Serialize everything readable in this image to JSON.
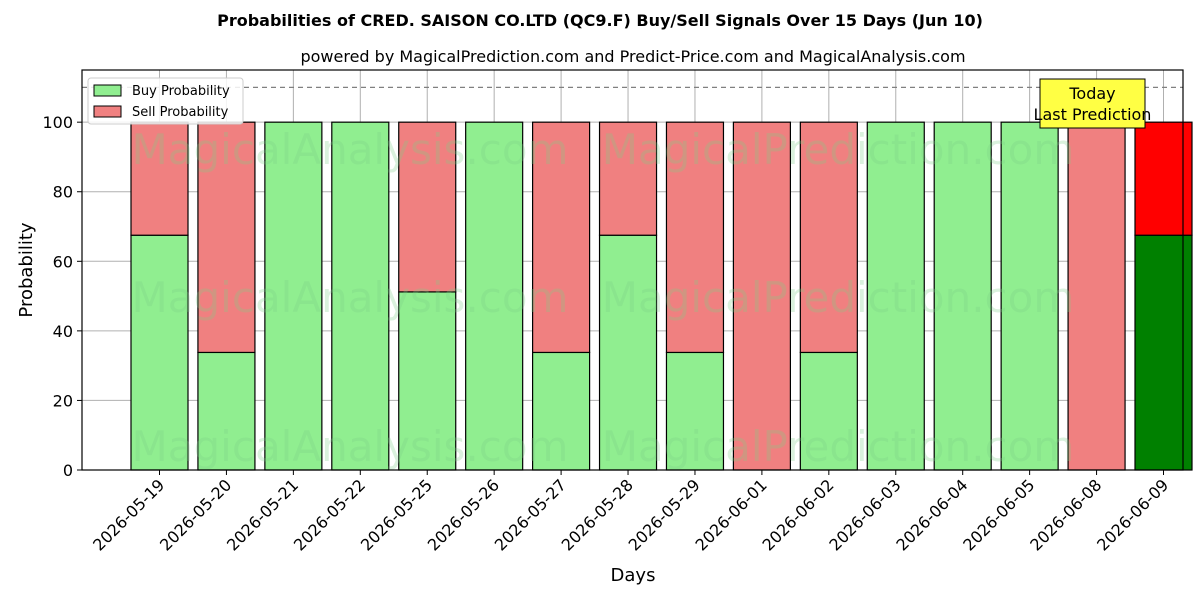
{
  "chart_data": {
    "type": "bar",
    "stacked": true,
    "title": "Probabilities of CRED. SAISON CO.LTD (QC9.F) Buy/Sell Signals Over 15 Days (Jun 10)",
    "subtitle": "powered by MagicalPrediction.com and Predict-Price.com and MagicalAnalysis.com",
    "xlabel": "Days",
    "ylabel": "Probability",
    "ylim": [
      0,
      115
    ],
    "yticks": [
      0,
      20,
      40,
      60,
      80,
      100
    ],
    "grid": true,
    "legend_position": "top-left",
    "reference_line": 110,
    "categories": [
      "2026-05-19",
      "2026-05-20",
      "2026-05-21",
      "2026-05-22",
      "2026-05-25",
      "2026-05-26",
      "2026-05-27",
      "2026-05-28",
      "2026-05-29",
      "2026-06-01",
      "2026-06-02",
      "2026-06-03",
      "2026-06-04",
      "2026-06-05",
      "2026-06-08",
      "2026-06-09"
    ],
    "series": [
      {
        "name": "Buy Probability",
        "color": "#90ee90",
        "highlight_color": "#008000",
        "values": [
          67.5,
          33.8,
          100,
          100,
          51.2,
          100,
          33.8,
          67.5,
          33.8,
          0,
          33.8,
          100,
          100,
          100,
          0,
          67.5
        ]
      },
      {
        "name": "Sell Probability",
        "color": "#f08080",
        "highlight_color": "#ff0000",
        "values": [
          32.5,
          66.2,
          0,
          0,
          48.8,
          0,
          66.2,
          32.5,
          66.2,
          100,
          66.2,
          0,
          0,
          0,
          100,
          32.5
        ]
      }
    ],
    "annotation": {
      "line1": "Today",
      "line2": "Last Prediction",
      "color": "#ffff44"
    },
    "watermarks": [
      "MagicalAnalysis.com",
      "MagicalPrediction.com"
    ]
  }
}
